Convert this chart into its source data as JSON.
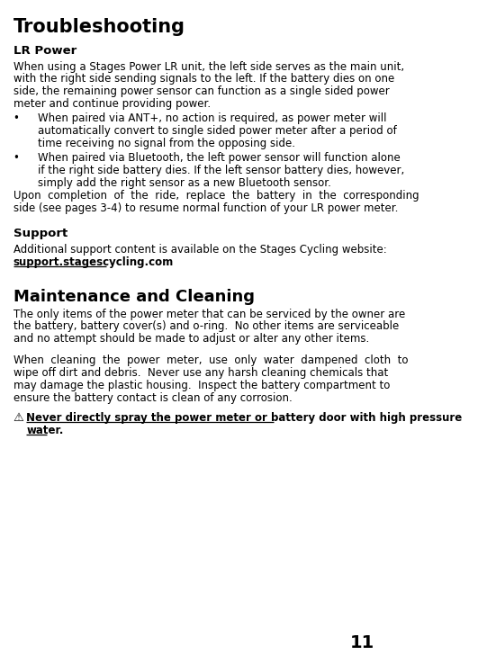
{
  "bg_color": "#ffffff",
  "page_number": "11",
  "title": "Troubleshooting",
  "section1_heading": "LR Power",
  "section1_para1_lines": [
    "When using a Stages Power LR unit, the left side serves as the main unit,",
    "with the right side sending signals to the left. If the battery dies on one",
    "side, the remaining power sensor can function as a single sided power",
    "meter and continue providing power."
  ],
  "bullet1_lines": [
    "When paired via ANT+, no action is required, as power meter will",
    "automatically convert to single sided power meter after a period of",
    "time receiving no signal from the opposing side."
  ],
  "bullet2_lines": [
    "When paired via Bluetooth, the left power sensor will function alone",
    "if the right side battery dies. If the left sensor battery dies, however,",
    "simply add the right sensor as a new Bluetooth sensor."
  ],
  "section1_para2_lines": [
    "Upon  completion  of  the  ride,  replace  the  battery  in  the  corresponding",
    "side (see pages 3-4) to resume normal function of your LR power meter."
  ],
  "section2_heading": "Support",
  "section2_para": "Additional support content is available on the Stages Cycling website:",
  "section2_link": "support.stagescycling.com",
  "section3_heading": "Maintenance and Cleaning",
  "section3_para1_lines": [
    "The only items of the power meter that can be serviced by the owner are",
    "the battery, battery cover(s) and o-ring.  No other items are serviceable",
    "and no attempt should be made to adjust or alter any other items."
  ],
  "section3_para2_lines": [
    "When  cleaning  the  power  meter,  use  only  water  dampened  cloth  to",
    "wipe off dirt and debris.  Never use any harsh cleaning chemicals that",
    "may damage the plastic housing.  Inspect the battery compartment to",
    "ensure the battery contact is clean of any corrosion."
  ],
  "warning_lines": [
    "Never directly spray the power meter or battery door with high pressure",
    "water."
  ],
  "font_family": "DejaVu Sans",
  "title_fontsize": 15,
  "heading1_fontsize": 9.5,
  "heading2_fontsize": 13,
  "body_fontsize": 8.5,
  "warning_fontsize": 8.5,
  "page_num_fontsize": 14
}
